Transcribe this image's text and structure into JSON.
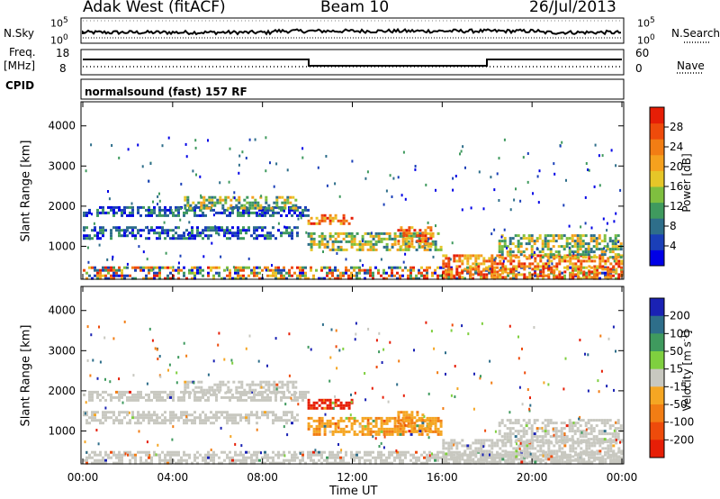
{
  "header": {
    "station": "Adak West (fitACF)",
    "beam": "Beam 10",
    "date": "26/Jul/2013"
  },
  "top_panels": {
    "nsky_label": "N.Sky",
    "nsearch_label": "N.Search",
    "nsky_ticks": [
      "10^5",
      "10^0"
    ],
    "nsearch_ticks": [
      "10^5",
      "10^0"
    ],
    "freq_label_1": "Freq.",
    "freq_label_2": "[MHz]",
    "freq_ticks": [
      "18",
      "8"
    ],
    "nave_label": "Nave",
    "nave_ticks": [
      "60",
      "0"
    ],
    "cpid_label": "CPID",
    "cpid_text": "normalsound (fast) 157 RF"
  },
  "chart_data": [
    {
      "type": "heatmap",
      "panel": "power",
      "ylabel": "Slant Range [km]",
      "colorbar_label": "Power [dB]",
      "colorbar_ticks": [
        "28",
        "24",
        "20",
        "16",
        "12",
        "8",
        "4"
      ],
      "colorbar_colors": [
        "#0000e6",
        "#1a3fb8",
        "#2e6e8a",
        "#3f9a5e",
        "#7fbf3f",
        "#e6c628",
        "#f5a11e",
        "#f27d14",
        "#ee4b0b",
        "#e61e06"
      ],
      "y_ticks": [
        "4000",
        "3000",
        "2000",
        "1000"
      ],
      "y_values": [
        4000,
        3000,
        2000,
        1000
      ],
      "ylim": [
        180,
        4600
      ],
      "x_ticks": [
        "00:00",
        "04:00",
        "08:00",
        "12:00",
        "16:00",
        "20:00",
        "00:00"
      ],
      "xlim_hours": [
        0,
        24
      ],
      "bands": [
        {
          "t0": 0.0,
          "t1": 10.0,
          "r0": 1750,
          "r1": 2000,
          "level": "low"
        },
        {
          "t0": 0.0,
          "t1": 9.5,
          "r0": 1200,
          "r1": 1500,
          "level": "low"
        },
        {
          "t0": 0.0,
          "t1": 24.0,
          "r0": 180,
          "r1": 500,
          "level": "mixed"
        },
        {
          "t0": 4.5,
          "t1": 9.5,
          "r0": 1950,
          "r1": 2250,
          "level": "mid"
        },
        {
          "t0": 10.0,
          "t1": 12.0,
          "r0": 1550,
          "r1": 1800,
          "level": "high"
        },
        {
          "t0": 10.0,
          "t1": 16.0,
          "r0": 900,
          "r1": 1350,
          "level": "mid"
        },
        {
          "t0": 14.0,
          "t1": 15.5,
          "r0": 1000,
          "r1": 1500,
          "level": "high"
        },
        {
          "t0": 16.0,
          "t1": 24.0,
          "r0": 250,
          "r1": 800,
          "level": "high"
        },
        {
          "t0": 18.5,
          "t1": 24.0,
          "r0": 700,
          "r1": 1300,
          "level": "mid"
        }
      ]
    },
    {
      "type": "heatmap",
      "panel": "velocity",
      "ylabel": "Slant Range [km]",
      "colorbar_label": "Velocity [m s^-1]",
      "colorbar_ticks": [
        "200",
        "100",
        "50",
        "15",
        "-15",
        "-50",
        "-100",
        "-200"
      ],
      "colorbar_colors": [
        "#1a22b4",
        "#2e6e8a",
        "#3f9a5e",
        "#7fcf3f",
        "#c8c8c0",
        "#f5a623",
        "#f27d14",
        "#ee4b0b",
        "#e61e06"
      ],
      "y_ticks": [
        "4000",
        "3000",
        "2000",
        "1000"
      ],
      "y_values": [
        4000,
        3000,
        2000,
        1000
      ],
      "ylim": [
        180,
        4600
      ],
      "x_ticks": [
        "00:00",
        "04:00",
        "08:00",
        "12:00",
        "16:00",
        "20:00",
        "00:00"
      ],
      "xlabel": "Time UT",
      "xlim_hours": [
        0,
        24
      ]
    }
  ]
}
